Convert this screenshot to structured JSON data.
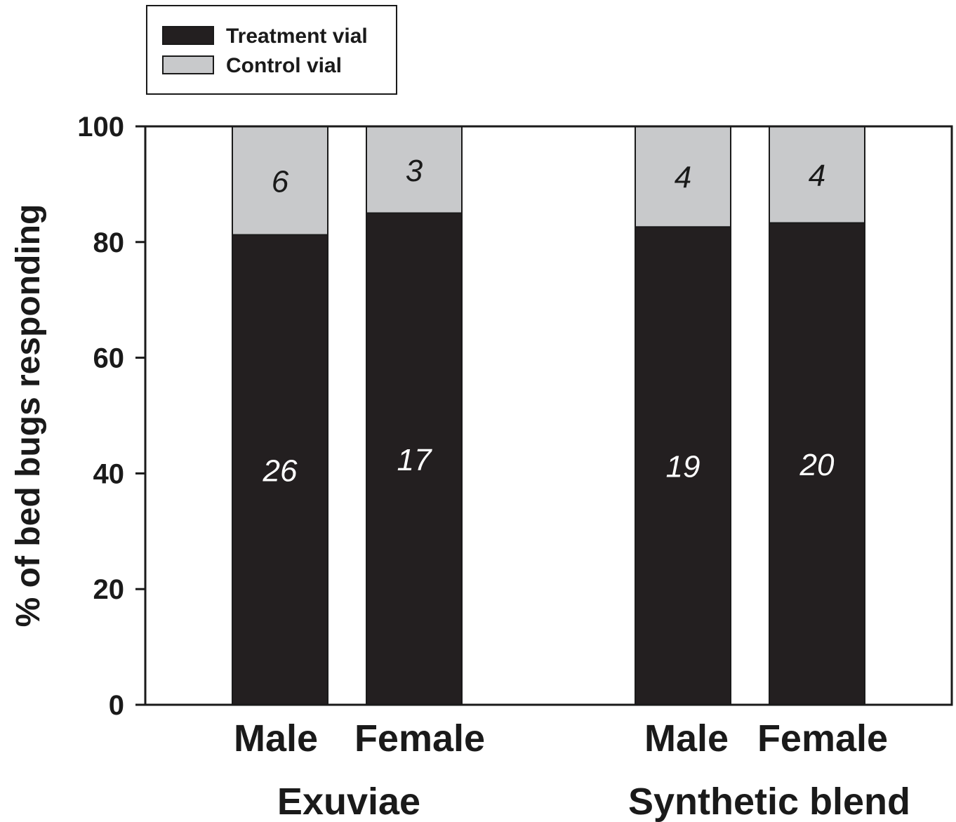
{
  "chart_data": {
    "type": "bar",
    "stacked": true,
    "title": "",
    "ylabel": "% of bed bugs responding",
    "ylim": [
      0,
      100
    ],
    "yticks": [
      "0",
      "20",
      "40",
      "60",
      "80",
      "100"
    ],
    "categories": [
      "Male",
      "Female",
      "Male",
      "Female"
    ],
    "groups": [
      {
        "label": "Exuviae",
        "categories": [
          0,
          1
        ]
      },
      {
        "label": "Synthetic blend",
        "categories": [
          2,
          3
        ]
      }
    ],
    "series": [
      {
        "name": "Treatment vial",
        "color": "#231f20",
        "counts": [
          26,
          17,
          19,
          20
        ],
        "values": [
          81.25,
          85.0,
          82.6,
          83.3
        ]
      },
      {
        "name": "Control vial",
        "color": "#c8c9cb",
        "counts": [
          6,
          3,
          4,
          4
        ],
        "values": [
          18.75,
          15.0,
          17.4,
          16.7
        ]
      }
    ],
    "legend": {
      "position": "top-left",
      "entries": [
        "Treatment vial",
        "Control vial"
      ]
    },
    "grid": false
  }
}
